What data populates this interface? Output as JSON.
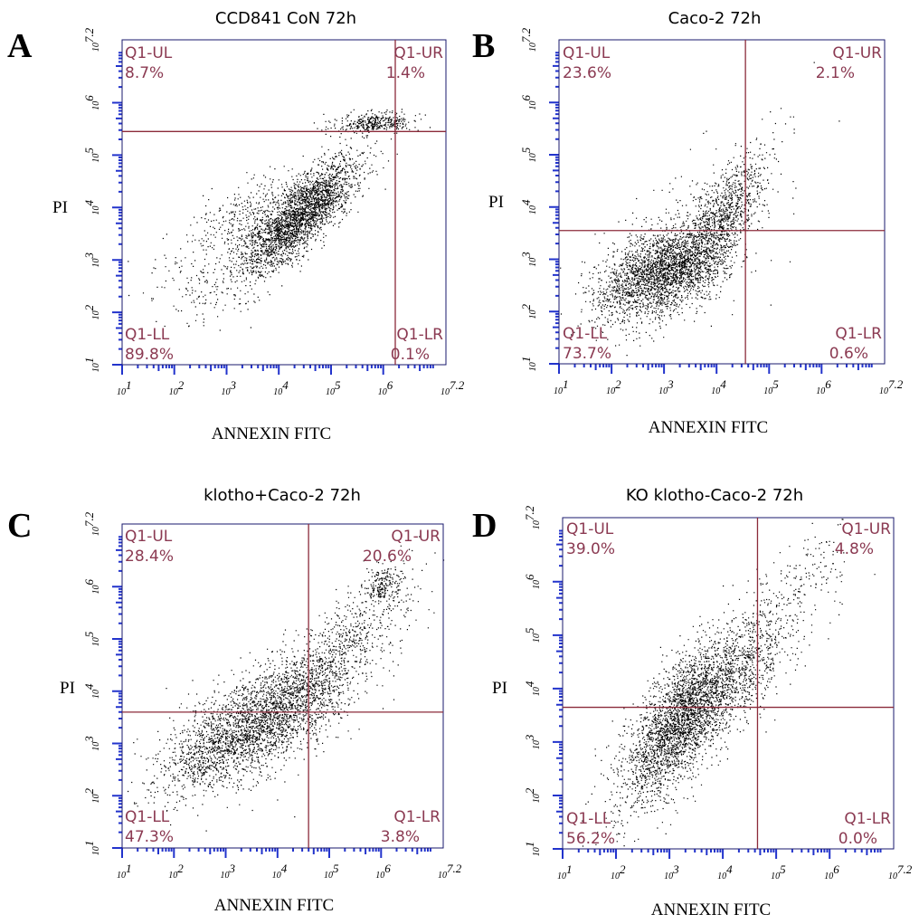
{
  "colors": {
    "frame": "#1a1a6e",
    "gate": "#8b2a3a",
    "quadrant_text": "#8b3a52",
    "dots": "#000000",
    "ticks": "#2233cc"
  },
  "chart_data": [
    {
      "type": "scatter",
      "panel": "A",
      "title": "CCD841 CoN 72h",
      "xlabel": "ANNEXIN FITC",
      "ylabel": "PI",
      "x_scale": "log",
      "y_scale": "log",
      "xlim": [
        1,
        7.2
      ],
      "ylim": [
        1,
        7.2
      ],
      "x_ticks": [
        "10^1",
        "10^2",
        "10^3",
        "10^4",
        "10^5",
        "10^6",
        "10^7.2"
      ],
      "y_ticks": [
        "10^1",
        "10^2",
        "10^3",
        "10^4",
        "10^5",
        "10^6",
        "10^7.2"
      ],
      "gate": {
        "x": 6.23,
        "y": 5.45
      },
      "quadrants": {
        "UL": {
          "label": "Q1-UL",
          "value": "8.7%"
        },
        "UR": {
          "label": "Q1-UR",
          "value": "1.4%"
        },
        "LL": {
          "label": "Q1-LL",
          "value": "89.8%"
        },
        "LR": {
          "label": "Q1-LR",
          "value": "0.1%"
        }
      },
      "populations": [
        {
          "cx": 4.4,
          "cy": 3.85,
          "sx": 0.55,
          "sy": 0.55,
          "rho": 0.8,
          "n": 2600
        },
        {
          "cx": 5.8,
          "cy": 5.62,
          "sx": 0.4,
          "sy": 0.1,
          "rho": 0.3,
          "n": 380
        },
        {
          "cx": 3.4,
          "cy": 3.8,
          "sx": 0.5,
          "sy": 0.4,
          "rho": 0.3,
          "n": 320
        },
        {
          "cx": 2.8,
          "cy": 2.7,
          "sx": 0.7,
          "sy": 0.5,
          "rho": 0.3,
          "n": 220
        }
      ]
    },
    {
      "type": "scatter",
      "panel": "B",
      "title": "Caco-2 72h",
      "xlabel": "ANNEXIN FITC",
      "ylabel": "PI",
      "x_scale": "log",
      "y_scale": "log",
      "xlim": [
        1,
        7.2
      ],
      "ylim": [
        1,
        7.2
      ],
      "x_ticks": [
        "10^1",
        "10^2",
        "10^3",
        "10^4",
        "10^5",
        "10^6",
        "10^7.2"
      ],
      "y_ticks": [
        "10^1",
        "10^2",
        "10^3",
        "10^4",
        "10^5",
        "10^6",
        "10^7.2"
      ],
      "gate": {
        "x": 4.55,
        "y": 3.55
      },
      "quadrants": {
        "UL": {
          "label": "Q1-UL",
          "value": "23.6%"
        },
        "UR": {
          "label": "Q1-UR",
          "value": "2.1%"
        },
        "LL": {
          "label": "Q1-LL",
          "value": "73.7%"
        },
        "LR": {
          "label": "Q1-LR",
          "value": "0.6%"
        }
      },
      "populations": [
        {
          "cx": 2.9,
          "cy": 2.75,
          "sx": 0.6,
          "sy": 0.45,
          "rho": 0.5,
          "n": 2300
        },
        {
          "cx": 4.05,
          "cy": 3.7,
          "sx": 0.45,
          "sy": 0.7,
          "rho": 0.75,
          "n": 1100
        },
        {
          "cx": 3.3,
          "cy": 3.3,
          "sx": 0.9,
          "sy": 0.9,
          "rho": 0.6,
          "n": 300
        }
      ]
    },
    {
      "type": "scatter",
      "panel": "C",
      "title": "klotho+Caco-2 72h",
      "xlabel": "ANNEXIN FITC",
      "ylabel": "PI",
      "x_scale": "log",
      "y_scale": "log",
      "xlim": [
        1,
        7.2
      ],
      "ylim": [
        1,
        7.2
      ],
      "x_ticks": [
        "10^1",
        "10^2",
        "10^3",
        "10^4",
        "10^5",
        "10^6",
        "10^7.2"
      ],
      "y_ticks": [
        "10^1",
        "10^2",
        "10^3",
        "10^4",
        "10^5",
        "10^6",
        "10^7.2"
      ],
      "gate": {
        "x": 4.6,
        "y": 3.6
      },
      "quadrants": {
        "UL": {
          "label": "Q1-UL",
          "value": "28.4%"
        },
        "UR": {
          "label": "Q1-UR",
          "value": "20.6%"
        },
        "LL": {
          "label": "Q1-LL",
          "value": "47.3%"
        },
        "LR": {
          "label": "Q1-LR",
          "value": "3.8%"
        }
      },
      "populations": [
        {
          "cx": 3.85,
          "cy": 3.55,
          "sx": 0.8,
          "sy": 0.6,
          "rho": 0.6,
          "n": 2300
        },
        {
          "cx": 2.6,
          "cy": 2.75,
          "sx": 0.55,
          "sy": 0.4,
          "rho": 0.4,
          "n": 600
        },
        {
          "cx": 5.2,
          "cy": 4.8,
          "sx": 0.75,
          "sy": 0.75,
          "rho": 0.8,
          "n": 700
        },
        {
          "cx": 6.0,
          "cy": 6.0,
          "sx": 0.18,
          "sy": 0.18,
          "rho": 0.3,
          "n": 180
        }
      ]
    },
    {
      "type": "scatter",
      "panel": "D",
      "title": "KO klotho-Caco-2 72h",
      "xlabel": "ANNEXIN FITC",
      "ylabel": "PI",
      "x_scale": "log",
      "y_scale": "log",
      "xlim": [
        1,
        7.2
      ],
      "ylim": [
        1,
        7.2
      ],
      "x_ticks": [
        "10^1",
        "10^2",
        "10^3",
        "10^4",
        "10^5",
        "10^6",
        "10^7.2"
      ],
      "y_ticks": [
        "10^1",
        "10^2",
        "10^3",
        "10^4",
        "10^5",
        "10^6",
        "10^7.2"
      ],
      "gate": {
        "x": 4.65,
        "y": 3.65
      },
      "quadrants": {
        "UL": {
          "label": "Q1-UL",
          "value": "39.0%"
        },
        "UR": {
          "label": "Q1-UR",
          "value": "4.8%"
        },
        "LL": {
          "label": "Q1-LL",
          "value": "56.2%"
        },
        "LR": {
          "label": "Q1-LR",
          "value": "0.0%"
        }
      },
      "populations": [
        {
          "cx": 3.2,
          "cy": 3.4,
          "sx": 0.55,
          "sy": 0.75,
          "rho": 0.7,
          "n": 2800
        },
        {
          "cx": 4.3,
          "cy": 4.2,
          "sx": 0.45,
          "sy": 0.55,
          "rho": 0.6,
          "n": 600
        },
        {
          "cx": 5.0,
          "cy": 5.4,
          "sx": 0.7,
          "sy": 0.8,
          "rho": 0.75,
          "n": 350
        }
      ]
    }
  ]
}
